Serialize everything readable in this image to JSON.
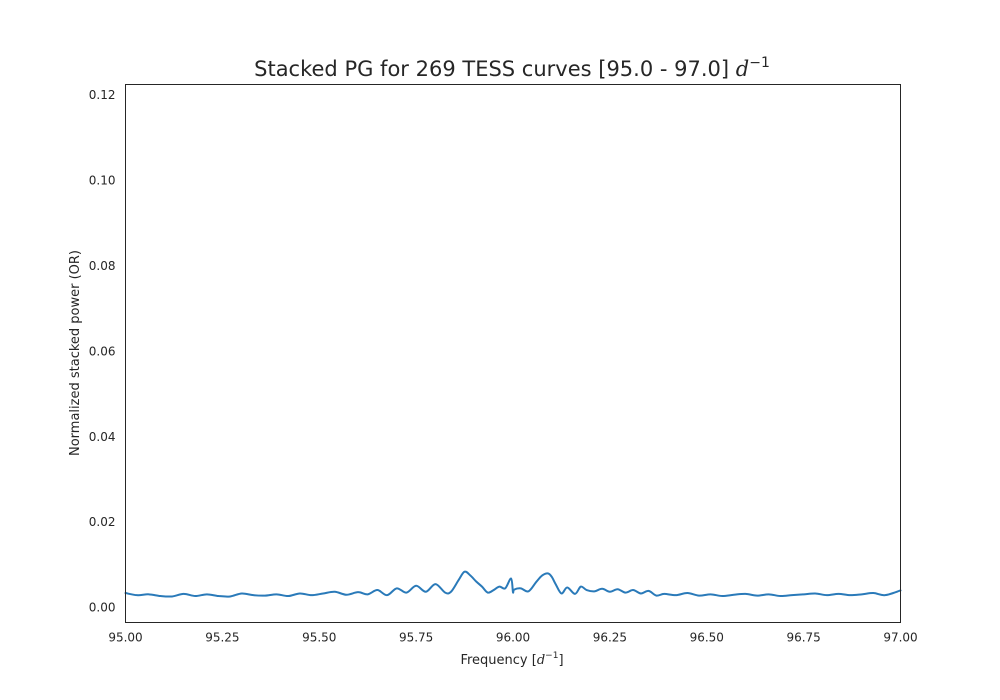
{
  "chart_data": {
    "type": "line",
    "title": {
      "text": "Stacked PG for 269 TESS curves [95.0 - 97.0] ",
      "math_base": "d",
      "math_exp": "−1"
    },
    "xlabel": {
      "text": "Frequency [",
      "math_base": "d",
      "math_exp": "−1",
      "suffix": "]"
    },
    "ylabel": "Normalized stacked power (OR)",
    "xlim": [
      95.0,
      97.0
    ],
    "ylim": [
      -0.0035,
      0.1225
    ],
    "x_ticks": [
      95.0,
      95.25,
      95.5,
      95.75,
      96.0,
      96.25,
      96.5,
      96.75,
      97.0
    ],
    "x_tick_labels": [
      "95.00",
      "95.25",
      "95.50",
      "95.75",
      "96.00",
      "96.25",
      "96.50",
      "96.75",
      "97.00"
    ],
    "y_ticks": [
      0.0,
      0.02,
      0.04,
      0.06,
      0.08,
      0.1,
      0.12
    ],
    "y_tick_labels": [
      "0.00",
      "0.02",
      "0.04",
      "0.06",
      "0.08",
      "0.10",
      "0.12"
    ],
    "grid": false,
    "series": [
      {
        "color": "#2a7ab9",
        "x": [
          95.0,
          95.03,
          95.06,
          95.09,
          95.12,
          95.15,
          95.18,
          95.21,
          95.24,
          95.27,
          95.3,
          95.33,
          95.36,
          95.39,
          95.42,
          95.45,
          95.48,
          95.51,
          95.54,
          95.57,
          95.6,
          95.625,
          95.65,
          95.675,
          95.7,
          95.725,
          95.75,
          95.775,
          95.8,
          95.825,
          95.84,
          95.86,
          95.875,
          95.89,
          95.905,
          95.92,
          95.935,
          95.95,
          95.965,
          95.98,
          95.995,
          96.0,
          96.003,
          96.02,
          96.04,
          96.06,
          96.075,
          96.09,
          96.1,
          96.11,
          96.125,
          96.14,
          96.16,
          96.175,
          96.19,
          96.21,
          96.23,
          96.25,
          96.27,
          96.29,
          96.31,
          96.33,
          96.35,
          96.37,
          96.39,
          96.42,
          96.45,
          96.48,
          96.51,
          96.54,
          96.57,
          96.6,
          96.63,
          96.66,
          96.69,
          96.72,
          96.75,
          96.78,
          96.81,
          96.84,
          96.87,
          96.9,
          96.93,
          96.96,
          97.0
        ],
        "y": [
          0.0034,
          0.0029,
          0.0031,
          0.0027,
          0.0026,
          0.0032,
          0.0027,
          0.0031,
          0.0027,
          0.0026,
          0.0033,
          0.0029,
          0.0028,
          0.0031,
          0.0027,
          0.0033,
          0.0029,
          0.0033,
          0.0037,
          0.003,
          0.0036,
          0.0031,
          0.0041,
          0.0029,
          0.0045,
          0.0035,
          0.0051,
          0.0037,
          0.0055,
          0.0035,
          0.0037,
          0.0065,
          0.0084,
          0.0075,
          0.0061,
          0.0049,
          0.0035,
          0.0041,
          0.0049,
          0.0045,
          0.0068,
          0.0036,
          0.0042,
          0.0045,
          0.0038,
          0.006,
          0.0075,
          0.008,
          0.0072,
          0.0055,
          0.0033,
          0.0047,
          0.0032,
          0.0049,
          0.0041,
          0.0038,
          0.0044,
          0.0037,
          0.0043,
          0.0035,
          0.0041,
          0.0033,
          0.0039,
          0.0028,
          0.0032,
          0.0029,
          0.0034,
          0.0028,
          0.0031,
          0.0027,
          0.003,
          0.0032,
          0.0028,
          0.0031,
          0.0027,
          0.0029,
          0.0031,
          0.0033,
          0.0029,
          0.0032,
          0.0029,
          0.0031,
          0.0034,
          0.0029,
          0.004
        ]
      }
    ]
  }
}
